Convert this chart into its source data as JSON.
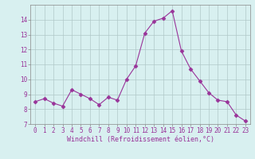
{
  "x": [
    0,
    1,
    2,
    3,
    4,
    5,
    6,
    7,
    8,
    9,
    10,
    11,
    12,
    13,
    14,
    15,
    16,
    17,
    18,
    19,
    20,
    21,
    22,
    23
  ],
  "y": [
    8.5,
    8.7,
    8.4,
    8.2,
    9.3,
    9.0,
    8.7,
    8.3,
    8.8,
    8.6,
    10.0,
    10.9,
    13.1,
    13.9,
    14.1,
    14.6,
    11.9,
    10.7,
    9.9,
    9.1,
    8.6,
    8.5,
    7.6,
    7.2
  ],
  "line_color": "#993399",
  "marker": "D",
  "marker_size": 2.5,
  "bg_color": "#d8f0f0",
  "grid_color": "#b0c8c8",
  "xlabel": "Windchill (Refroidissement éolien,°C)",
  "xlim": [
    -0.5,
    23.5
  ],
  "ylim": [
    7,
    15
  ],
  "yticks": [
    7,
    8,
    9,
    10,
    11,
    12,
    13,
    14
  ],
  "xticks": [
    0,
    1,
    2,
    3,
    4,
    5,
    6,
    7,
    8,
    9,
    10,
    11,
    12,
    13,
    14,
    15,
    16,
    17,
    18,
    19,
    20,
    21,
    22,
    23
  ],
  "label_color": "#993399",
  "tick_fontsize": 5.5,
  "xlabel_fontsize": 6.0
}
